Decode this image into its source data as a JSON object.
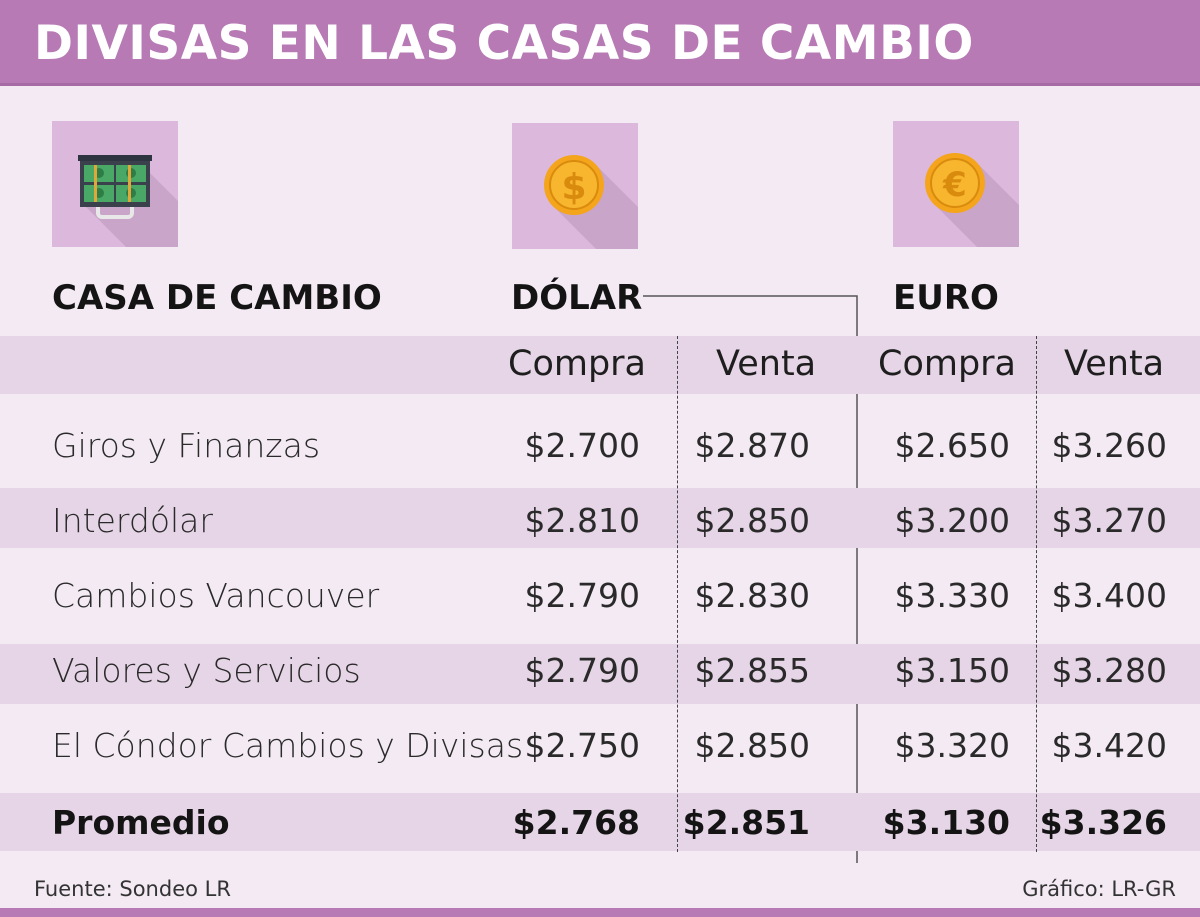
{
  "title": "DIVISAS EN LAS CASAS DE CAMBIO",
  "colors": {
    "header_bg": "#b77ab5",
    "page_bg": "#f3eaf3",
    "band_bg": "#e6d5e7",
    "icon_bg": "#dcb9dc",
    "coin": "#f4a51c"
  },
  "icons": {
    "house": "briefcase-money-icon",
    "dollar": "dollar-coin-icon",
    "euro": "euro-coin-icon"
  },
  "coin_symbols": {
    "dollar": "$",
    "euro": "€"
  },
  "headers": {
    "house": "CASA DE CAMBIO",
    "dollar": "DÓLAR",
    "euro": "EURO",
    "buy": "Compra",
    "sell": "Venta"
  },
  "chart_data": {
    "type": "table",
    "title": "DIVISAS EN LAS CASAS DE CAMBIO",
    "columns": [
      "CASA DE CAMBIO",
      "DÓLAR Compra",
      "DÓLAR Venta",
      "EURO Compra",
      "EURO Venta"
    ],
    "rows": [
      {
        "name": "Giros y Finanzas",
        "values": [
          "$2.700",
          "$2.870",
          "$2.650",
          "$3.260"
        ]
      },
      {
        "name": "Interdólar",
        "values": [
          "$2.810",
          "$2.850",
          "$3.200",
          "$3.270"
        ]
      },
      {
        "name": "Cambios Vancouver",
        "values": [
          "$2.790",
          "$2.830",
          "$3.330",
          "$3.400"
        ]
      },
      {
        "name": "Valores y Servicios",
        "values": [
          "$2.790",
          "$2.855",
          "$3.150",
          "$3.280"
        ]
      },
      {
        "name": "El Cóndor Cambios y Divisas",
        "values": [
          "$2.750",
          "$2.850",
          "$3.320",
          "$3.420"
        ]
      }
    ],
    "average": {
      "name": "Promedio",
      "values": [
        "$2.768",
        "$2.851",
        "$3.130",
        "$3.326"
      ]
    }
  },
  "footer": {
    "source": "Fuente: Sondeo LR",
    "credit": "Gráfico: LR-GR"
  }
}
